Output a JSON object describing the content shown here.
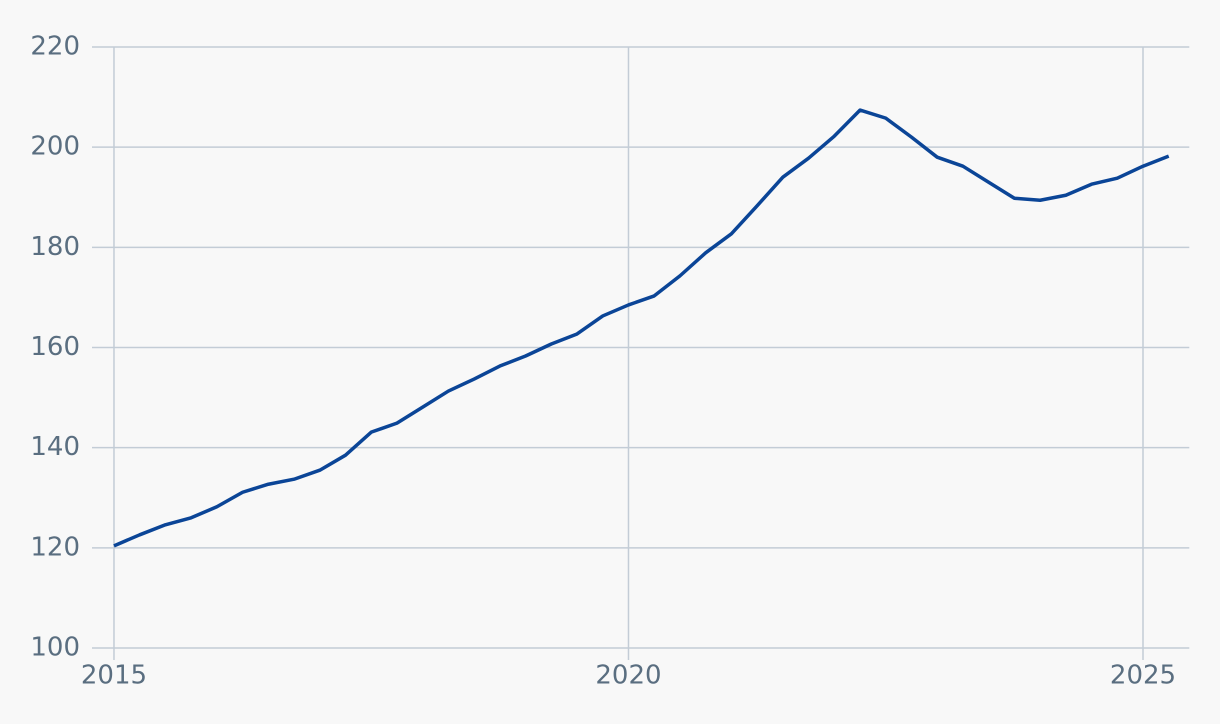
{
  "chart_data": {
    "type": "line",
    "x": [
      2015,
      2015.25,
      2015.5,
      2015.75,
      2016,
      2016.25,
      2016.5,
      2016.75,
      2017,
      2017.25,
      2017.5,
      2017.75,
      2018,
      2018.25,
      2018.5,
      2018.75,
      2019,
      2019.25,
      2019.5,
      2019.75,
      2020,
      2020.25,
      2020.5,
      2020.75,
      2021,
      2021.25,
      2021.5,
      2021.75,
      2022,
      2022.25,
      2022.5,
      2022.75,
      2023,
      2023.25,
      2023.5,
      2023.75,
      2024,
      2024.25,
      2024.5,
      2024.75,
      2025,
      2025.25
    ],
    "series": [
      {
        "color": "#0b4597",
        "values": [
          120.4,
          122.6,
          124.6,
          126.0,
          128.2,
          131.1,
          132.7,
          133.7,
          135.5,
          138.5,
          143.1,
          144.9,
          148.1,
          151.3,
          153.7,
          156.3,
          158.3,
          160.7,
          162.7,
          166.3,
          168.5,
          170.3,
          174.3,
          178.9,
          182.7,
          188.3,
          194.0,
          197.8,
          202.2,
          207.4,
          205.8,
          202.0,
          198.0,
          196.2,
          193.0,
          189.8,
          189.4,
          190.4,
          192.6,
          193.8,
          196.2,
          198.2
        ]
      }
    ],
    "xlim": [
      2014.8,
      2025.45
    ],
    "xticks": [
      2015,
      2020,
      2025
    ],
    "ylim": [
      100,
      220
    ],
    "yticks": [
      100,
      120,
      140,
      160,
      180,
      200,
      220
    ],
    "grid": true
  }
}
